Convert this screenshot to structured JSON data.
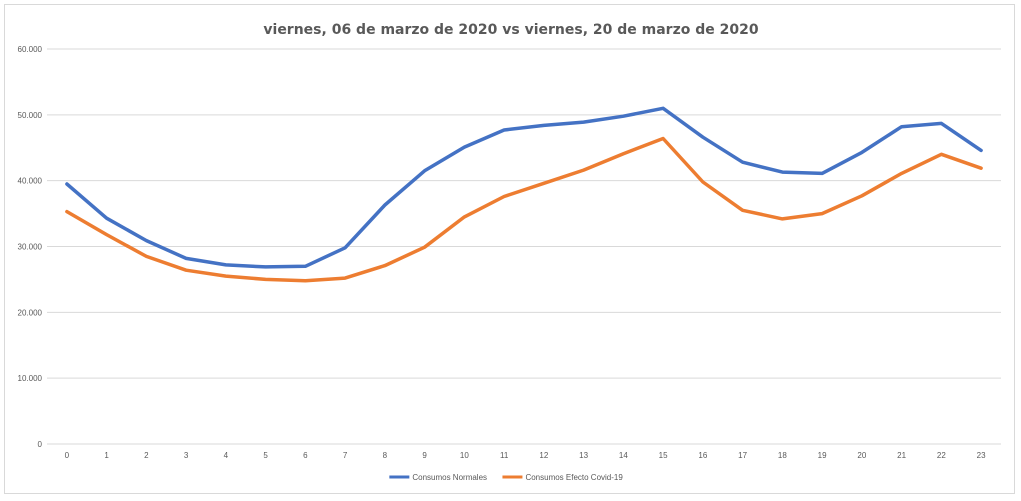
{
  "chart_data": {
    "type": "line",
    "title": "viernes, 06 de marzo de 2020   vs   viernes, 20 de marzo de 2020",
    "xlabel": "",
    "ylabel": "",
    "categories": [
      "0",
      "1",
      "2",
      "3",
      "4",
      "5",
      "6",
      "7",
      "8",
      "9",
      "10",
      "11",
      "12",
      "13",
      "14",
      "15",
      "16",
      "17",
      "18",
      "19",
      "20",
      "21",
      "22",
      "23"
    ],
    "ylim": [
      0,
      60000
    ],
    "yticks": [
      0,
      10000,
      20000,
      30000,
      40000,
      50000,
      60000
    ],
    "ytick_labels": [
      "0",
      "10.000",
      "20.000",
      "30.000",
      "40.000",
      "50.000",
      "60.000"
    ],
    "grid": true,
    "legend": "bottom",
    "series": [
      {
        "name": "Consumos Normales",
        "color": "#4472c4",
        "values": [
          39500,
          34300,
          30900,
          28200,
          27200,
          26900,
          27000,
          29800,
          36300,
          41500,
          45100,
          47700,
          48400,
          48900,
          49800,
          51000,
          46600,
          42800,
          41300,
          41100,
          44300,
          48200,
          48700,
          44600
        ]
      },
      {
        "name": "Consumos Efecto Covid-19",
        "color": "#ed7d31",
        "values": [
          35300,
          31800,
          28500,
          26400,
          25500,
          25000,
          24800,
          25200,
          27100,
          29900,
          34500,
          37600,
          39600,
          41600,
          44100,
          46400,
          39800,
          35500,
          34200,
          35000,
          37700,
          41100,
          44000,
          41900
        ]
      }
    ]
  }
}
